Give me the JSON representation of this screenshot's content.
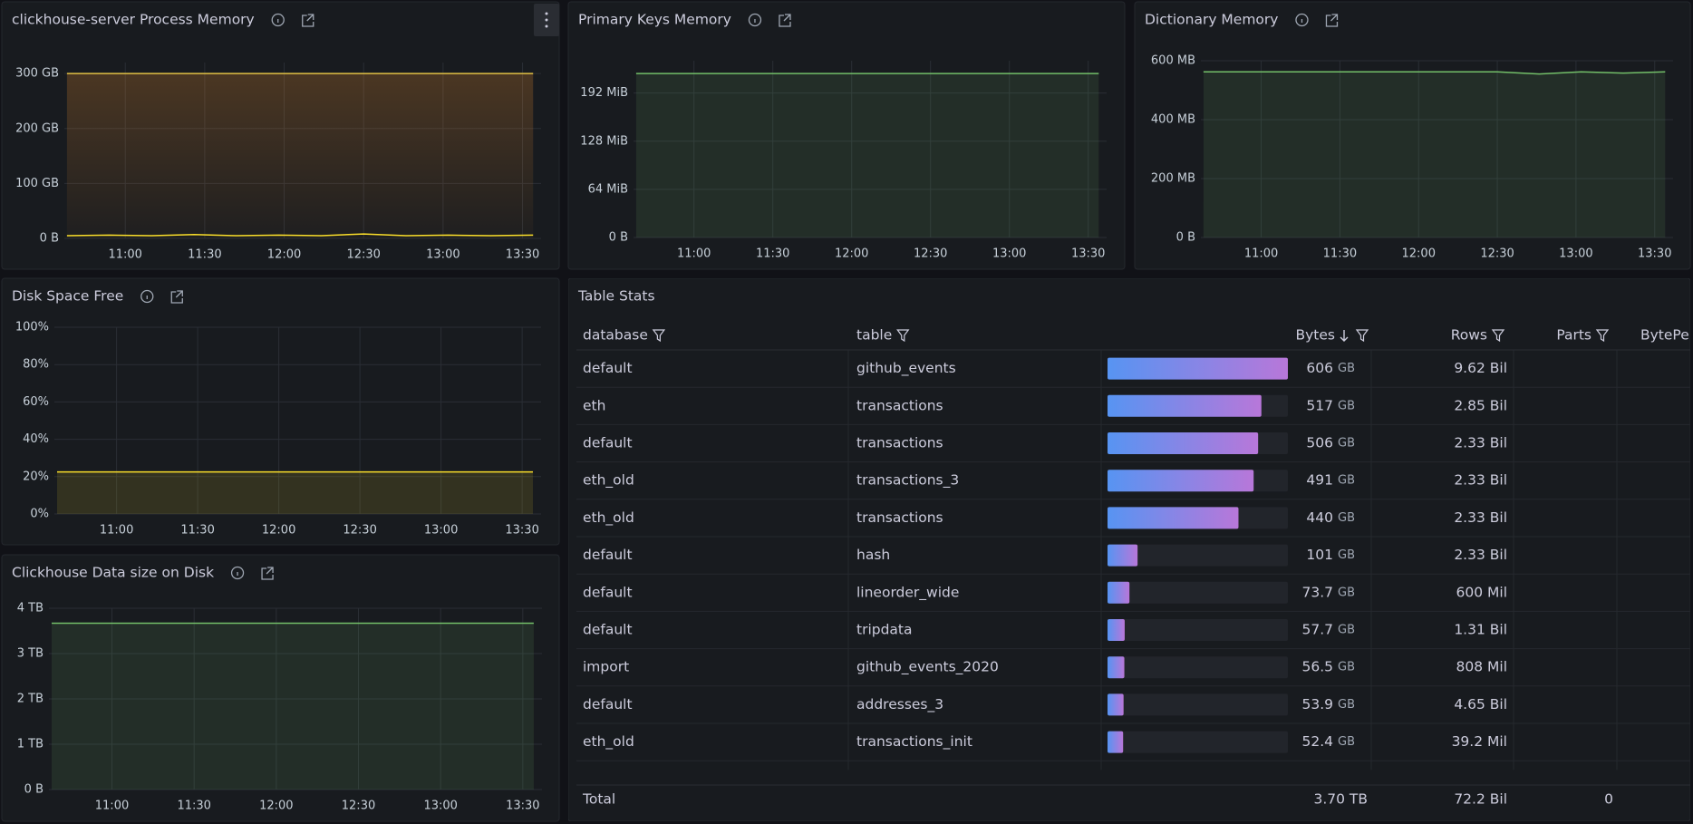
{
  "panels": [
    {
      "title": "clickhouse-server Process Memory",
      "type": "line",
      "x": [
        638,
        654,
        670,
        686,
        702,
        718,
        734,
        750,
        766,
        782,
        798,
        814
      ],
      "xlim": [
        637,
        817
      ],
      "xticks": [
        {
          "value": 660,
          "label": "11:00"
        },
        {
          "value": 690,
          "label": "11:30"
        },
        {
          "value": 720,
          "label": "12:00"
        },
        {
          "value": 750,
          "label": "12:30"
        },
        {
          "value": 780,
          "label": "13:00"
        },
        {
          "value": 810,
          "label": "13:30"
        }
      ],
      "ylim": [
        0,
        320
      ],
      "yticks": [
        {
          "value": 0,
          "label": "0 B"
        },
        {
          "value": 100,
          "label": "100 GB"
        },
        {
          "value": 200,
          "label": "200 GB"
        },
        {
          "value": 300,
          "label": "300 GB"
        }
      ],
      "series": [
        {
          "color": "#e0c045",
          "fill_color": "#ff9830",
          "values": [
            300,
            300,
            300,
            300,
            300,
            300,
            300,
            300,
            300,
            300,
            300,
            300
          ]
        },
        {
          "color": "#fade2a",
          "values": [
            5,
            6,
            5,
            7,
            5,
            6,
            5,
            8,
            5,
            6,
            5,
            6
          ]
        }
      ]
    },
    {
      "title": "Primary Keys Memory",
      "type": "line",
      "x": [
        638,
        654,
        670,
        686,
        702,
        718,
        734,
        750,
        766,
        782,
        798,
        814
      ],
      "xlim": [
        637,
        817
      ],
      "xticks": [
        {
          "value": 660,
          "label": "11:00"
        },
        {
          "value": 690,
          "label": "11:30"
        },
        {
          "value": 720,
          "label": "12:00"
        },
        {
          "value": 750,
          "label": "12:30"
        },
        {
          "value": 780,
          "label": "13:00"
        },
        {
          "value": 810,
          "label": "13:30"
        }
      ],
      "ylim": [
        0,
        235
      ],
      "yticks": [
        {
          "value": 0,
          "label": "0 B"
        },
        {
          "value": 64,
          "label": "64 MiB"
        },
        {
          "value": 128,
          "label": "128 MiB"
        },
        {
          "value": 192,
          "label": "192 MiB"
        }
      ],
      "series": [
        {
          "color": "#73bf69",
          "fill_color": "#73bf69",
          "values": [
            218,
            218,
            218,
            218,
            218,
            218,
            218,
            218,
            218,
            218,
            218,
            218
          ]
        }
      ]
    },
    {
      "title": "Dictionary Memory",
      "type": "line",
      "x": [
        638,
        654,
        670,
        686,
        702,
        718,
        734,
        750,
        766,
        782,
        798,
        814
      ],
      "xlim": [
        637,
        817
      ],
      "xticks": [
        {
          "value": 660,
          "label": "11:00"
        },
        {
          "value": 690,
          "label": "11:30"
        },
        {
          "value": 720,
          "label": "12:00"
        },
        {
          "value": 750,
          "label": "12:30"
        },
        {
          "value": 780,
          "label": "13:00"
        },
        {
          "value": 810,
          "label": "13:30"
        }
      ],
      "ylim": [
        0,
        600
      ],
      "yticks": [
        {
          "value": 0,
          "label": "0 B"
        },
        {
          "value": 200,
          "label": "200 MB"
        },
        {
          "value": 400,
          "label": "400 MB"
        },
        {
          "value": 600,
          "label": "600 MB"
        }
      ],
      "series": [
        {
          "color": "#73bf69",
          "fill_color": "#73bf69",
          "values": [
            562,
            562,
            562,
            562,
            562,
            562,
            562,
            562,
            555,
            562,
            558,
            562
          ]
        }
      ]
    },
    {
      "title": "Disk Space Free",
      "type": "line",
      "x": [
        638,
        654,
        670,
        686,
        702,
        718,
        734,
        750,
        766,
        782,
        798,
        814
      ],
      "xlim": [
        637,
        817
      ],
      "xticks": [
        {
          "value": 660,
          "label": "11:00"
        },
        {
          "value": 690,
          "label": "11:30"
        },
        {
          "value": 720,
          "label": "12:00"
        },
        {
          "value": 750,
          "label": "12:30"
        },
        {
          "value": 780,
          "label": "13:00"
        },
        {
          "value": 810,
          "label": "13:30"
        }
      ],
      "ylim": [
        0,
        100
      ],
      "yticks": [
        {
          "value": 0,
          "label": "0%"
        },
        {
          "value": 20,
          "label": "20%"
        },
        {
          "value": 40,
          "label": "40%"
        },
        {
          "value": 60,
          "label": "60%"
        },
        {
          "value": 80,
          "label": "80%"
        },
        {
          "value": 100,
          "label": "100%"
        }
      ],
      "series": [
        {
          "color": "#fade2a",
          "fill_color": "#fade2a",
          "values": [
            22.5,
            22.5,
            22.5,
            22.5,
            22.5,
            22.5,
            22.5,
            22.5,
            22.5,
            22.5,
            22.5,
            22.5
          ]
        }
      ]
    },
    {
      "title": "Clickhouse Data size on Disk",
      "type": "line",
      "x": [
        638,
        654,
        670,
        686,
        702,
        718,
        734,
        750,
        766,
        782,
        798,
        814
      ],
      "xlim": [
        637,
        817
      ],
      "xticks": [
        {
          "value": 660,
          "label": "11:00"
        },
        {
          "value": 690,
          "label": "11:30"
        },
        {
          "value": 720,
          "label": "12:00"
        },
        {
          "value": 750,
          "label": "12:30"
        },
        {
          "value": 780,
          "label": "13:00"
        },
        {
          "value": 810,
          "label": "13:30"
        }
      ],
      "ylim": [
        0,
        4
      ],
      "yticks": [
        {
          "value": 0,
          "label": "0 B"
        },
        {
          "value": 1,
          "label": "1 TB"
        },
        {
          "value": 2,
          "label": "2 TB"
        },
        {
          "value": 3,
          "label": "3 TB"
        },
        {
          "value": 4,
          "label": "4 TB"
        }
      ],
      "series": [
        {
          "color": "#73bf69",
          "fill_color": "#73bf69",
          "values": [
            3.67,
            3.67,
            3.67,
            3.67,
            3.67,
            3.67,
            3.67,
            3.67,
            3.67,
            3.67,
            3.67,
            3.67
          ]
        }
      ]
    }
  ],
  "table": {
    "title": "Table Stats",
    "columns": [
      "database",
      "table",
      "Bytes",
      "Rows",
      "Parts",
      "BytePe"
    ],
    "bar_colors": [
      "#5794f2",
      "#b877d9"
    ],
    "rows": [
      {
        "database": "default",
        "table": "github_events",
        "bytes": {
          "value": 606,
          "unit": "GB"
        },
        "rows": "9.62 Bil"
      },
      {
        "database": "eth",
        "table": "transactions",
        "bytes": {
          "value": 517,
          "unit": "GB"
        },
        "rows": "2.85 Bil"
      },
      {
        "database": "default",
        "table": "transactions",
        "bytes": {
          "value": 506,
          "unit": "GB"
        },
        "rows": "2.33 Bil"
      },
      {
        "database": "eth_old",
        "table": "transactions_3",
        "bytes": {
          "value": 491,
          "unit": "GB"
        },
        "rows": "2.33 Bil"
      },
      {
        "database": "eth_old",
        "table": "transactions",
        "bytes": {
          "value": 440,
          "unit": "GB"
        },
        "rows": "2.33 Bil"
      },
      {
        "database": "default",
        "table": "hash",
        "bytes": {
          "value": 101,
          "unit": "GB"
        },
        "rows": "2.33 Bil"
      },
      {
        "database": "default",
        "table": "lineorder_wide",
        "bytes": {
          "value": 73.7,
          "unit": "GB"
        },
        "rows": "600 Mil"
      },
      {
        "database": "default",
        "table": "tripdata",
        "bytes": {
          "value": 57.7,
          "unit": "GB"
        },
        "rows": "1.31 Bil"
      },
      {
        "database": "import",
        "table": "github_events_2020",
        "bytes": {
          "value": 56.5,
          "unit": "GB"
        },
        "rows": "808 Mil"
      },
      {
        "database": "default",
        "table": "addresses_3",
        "bytes": {
          "value": 53.9,
          "unit": "GB"
        },
        "rows": "4.65 Bil"
      },
      {
        "database": "eth_old",
        "table": "transactions_init",
        "bytes": {
          "value": 52.4,
          "unit": "GB"
        },
        "rows": "39.2 Mil"
      }
    ],
    "total": {
      "label": "Total",
      "bytes": "3.70 TB",
      "rows": "72.2 Bil",
      "parts": 0
    }
  }
}
